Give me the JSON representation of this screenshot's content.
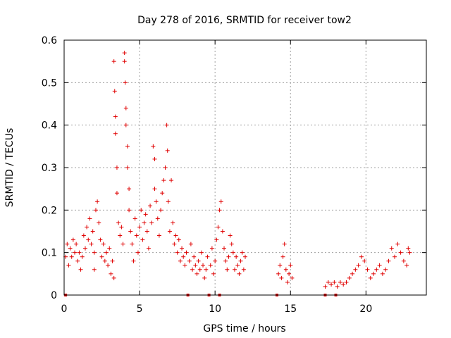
{
  "chart_data": {
    "type": "scatter",
    "title": "Day 278 of 2016, SRMTID for receiver tow2",
    "xlabel": "GPS time / hours",
    "ylabel": "SRMTID / TECUs",
    "xlim": [
      0,
      24
    ],
    "ylim": [
      0,
      0.6
    ],
    "xticks": [
      0,
      5,
      10,
      15,
      20
    ],
    "xtick_labels": [
      "0",
      "5",
      "10",
      "15",
      "20"
    ],
    "yticks": [
      0,
      0.1,
      0.2,
      0.3,
      0.4,
      0.5,
      0.6
    ],
    "ytick_labels": [
      "0",
      "0.1",
      "0.2",
      "0.3",
      "0.4",
      "0.5",
      "0.6"
    ],
    "grid": true,
    "marker": "plus",
    "color": "#e00000",
    "zero_markers_x": [
      0.1,
      8.2,
      9.6,
      10.3,
      14.1,
      17.3,
      18.0
    ],
    "series": [
      {
        "name": "SRMTID",
        "points": [
          [
            0.1,
            0.09
          ],
          [
            0.2,
            0.12
          ],
          [
            0.3,
            0.07
          ],
          [
            0.4,
            0.11
          ],
          [
            0.5,
            0.09
          ],
          [
            0.6,
            0.13
          ],
          [
            0.7,
            0.1
          ],
          [
            0.8,
            0.12
          ],
          [
            0.9,
            0.08
          ],
          [
            1.0,
            0.1
          ],
          [
            1.1,
            0.06
          ],
          [
            1.2,
            0.09
          ],
          [
            1.3,
            0.14
          ],
          [
            1.4,
            0.11
          ],
          [
            1.5,
            0.16
          ],
          [
            1.6,
            0.13
          ],
          [
            1.7,
            0.18
          ],
          [
            1.8,
            0.12
          ],
          [
            1.9,
            0.15
          ],
          [
            2.0,
            0.1
          ],
          [
            2.0,
            0.06
          ],
          [
            2.1,
            0.2
          ],
          [
            2.2,
            0.22
          ],
          [
            2.3,
            0.17
          ],
          [
            2.4,
            0.13
          ],
          [
            2.5,
            0.09
          ],
          [
            2.6,
            0.12
          ],
          [
            2.7,
            0.08
          ],
          [
            2.8,
            0.1
          ],
          [
            2.9,
            0.07
          ],
          [
            3.0,
            0.11
          ],
          [
            3.1,
            0.05
          ],
          [
            3.2,
            0.08
          ],
          [
            3.3,
            0.04
          ],
          [
            3.3,
            0.55
          ],
          [
            3.35,
            0.48
          ],
          [
            3.4,
            0.42
          ],
          [
            3.4,
            0.38
          ],
          [
            3.5,
            0.3
          ],
          [
            3.5,
            0.24
          ],
          [
            3.6,
            0.17
          ],
          [
            3.7,
            0.14
          ],
          [
            3.8,
            0.16
          ],
          [
            3.9,
            0.12
          ],
          [
            4.0,
            0.57
          ],
          [
            4.0,
            0.55
          ],
          [
            4.05,
            0.5
          ],
          [
            4.1,
            0.44
          ],
          [
            4.1,
            0.4
          ],
          [
            4.2,
            0.35
          ],
          [
            4.2,
            0.3
          ],
          [
            4.3,
            0.25
          ],
          [
            4.3,
            0.2
          ],
          [
            4.4,
            0.15
          ],
          [
            4.5,
            0.12
          ],
          [
            4.6,
            0.08
          ],
          [
            4.7,
            0.18
          ],
          [
            4.8,
            0.14
          ],
          [
            4.9,
            0.1
          ],
          [
            5.0,
            0.16
          ],
          [
            5.1,
            0.2
          ],
          [
            5.2,
            0.13
          ],
          [
            5.3,
            0.17
          ],
          [
            5.4,
            0.19
          ],
          [
            5.5,
            0.15
          ],
          [
            5.6,
            0.11
          ],
          [
            5.7,
            0.21
          ],
          [
            5.8,
            0.17
          ],
          [
            5.9,
            0.35
          ],
          [
            6.0,
            0.32
          ],
          [
            6.0,
            0.25
          ],
          [
            6.1,
            0.22
          ],
          [
            6.2,
            0.18
          ],
          [
            6.3,
            0.14
          ],
          [
            6.4,
            0.2
          ],
          [
            6.5,
            0.24
          ],
          [
            6.6,
            0.27
          ],
          [
            6.7,
            0.3
          ],
          [
            6.8,
            0.4
          ],
          [
            6.85,
            0.34
          ],
          [
            6.9,
            0.22
          ],
          [
            7.0,
            0.15
          ],
          [
            7.1,
            0.27
          ],
          [
            7.2,
            0.17
          ],
          [
            7.3,
            0.12
          ],
          [
            7.4,
            0.14
          ],
          [
            7.5,
            0.1
          ],
          [
            7.6,
            0.13
          ],
          [
            7.7,
            0.08
          ],
          [
            7.8,
            0.11
          ],
          [
            7.9,
            0.09
          ],
          [
            8.0,
            0.07
          ],
          [
            8.1,
            0.1
          ],
          [
            8.3,
            0.08
          ],
          [
            8.4,
            0.12
          ],
          [
            8.5,
            0.06
          ],
          [
            8.6,
            0.09
          ],
          [
            8.7,
            0.07
          ],
          [
            8.8,
            0.05
          ],
          [
            8.9,
            0.08
          ],
          [
            9.0,
            0.06
          ],
          [
            9.1,
            0.1
          ],
          [
            9.2,
            0.07
          ],
          [
            9.3,
            0.04
          ],
          [
            9.4,
            0.06
          ],
          [
            9.5,
            0.09
          ],
          [
            9.7,
            0.07
          ],
          [
            9.8,
            0.11
          ],
          [
            9.9,
            0.05
          ],
          [
            10.0,
            0.08
          ],
          [
            10.1,
            0.13
          ],
          [
            10.2,
            0.16
          ],
          [
            10.3,
            0.2
          ],
          [
            10.4,
            0.22
          ],
          [
            10.5,
            0.15
          ],
          [
            10.6,
            0.11
          ],
          [
            10.7,
            0.08
          ],
          [
            10.8,
            0.06
          ],
          [
            10.9,
            0.09
          ],
          [
            11.0,
            0.14
          ],
          [
            11.1,
            0.12
          ],
          [
            11.2,
            0.1
          ],
          [
            11.3,
            0.06
          ],
          [
            11.4,
            0.09
          ],
          [
            11.5,
            0.07
          ],
          [
            11.6,
            0.05
          ],
          [
            11.7,
            0.08
          ],
          [
            11.8,
            0.1
          ],
          [
            11.9,
            0.06
          ],
          [
            12.0,
            0.09
          ],
          [
            14.2,
            0.05
          ],
          [
            14.3,
            0.07
          ],
          [
            14.4,
            0.04
          ],
          [
            14.5,
            0.09
          ],
          [
            14.6,
            0.12
          ],
          [
            14.7,
            0.06
          ],
          [
            14.8,
            0.03
          ],
          [
            14.9,
            0.05
          ],
          [
            15.0,
            0.07
          ],
          [
            15.1,
            0.04
          ],
          [
            17.3,
            0.02
          ],
          [
            17.5,
            0.03
          ],
          [
            17.7,
            0.025
          ],
          [
            17.9,
            0.03
          ],
          [
            18.1,
            0.02
          ],
          [
            18.3,
            0.03
          ],
          [
            18.5,
            0.025
          ],
          [
            18.7,
            0.03
          ],
          [
            18.9,
            0.04
          ],
          [
            19.1,
            0.05
          ],
          [
            19.3,
            0.06
          ],
          [
            19.5,
            0.07
          ],
          [
            19.7,
            0.09
          ],
          [
            19.9,
            0.08
          ],
          [
            20.1,
            0.06
          ],
          [
            20.3,
            0.04
          ],
          [
            20.5,
            0.05
          ],
          [
            20.7,
            0.06
          ],
          [
            20.9,
            0.07
          ],
          [
            21.1,
            0.05
          ],
          [
            21.3,
            0.06
          ],
          [
            21.5,
            0.08
          ],
          [
            21.7,
            0.11
          ],
          [
            21.9,
            0.09
          ],
          [
            22.1,
            0.12
          ],
          [
            22.3,
            0.1
          ],
          [
            22.5,
            0.08
          ],
          [
            22.7,
            0.07
          ],
          [
            22.8,
            0.11
          ],
          [
            22.9,
            0.1
          ]
        ]
      }
    ]
  }
}
